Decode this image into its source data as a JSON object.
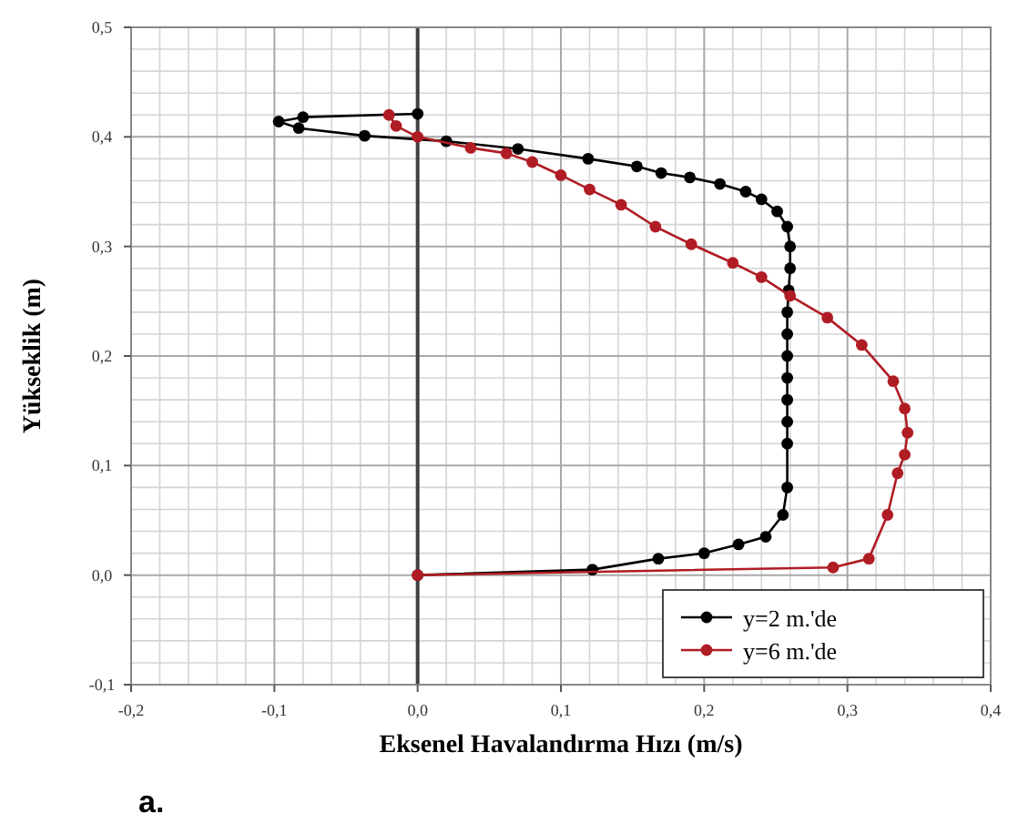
{
  "chart_data": {
    "type": "line",
    "xlabel": "Eksenel Havalandırma Hızı (m/s)",
    "ylabel": "Yükseklik (m)",
    "xlim": [
      -0.2,
      0.4
    ],
    "ylim": [
      -0.1,
      0.5
    ],
    "xticks": [
      {
        "value": -0.2,
        "label": "-0,2"
      },
      {
        "value": -0.1,
        "label": "-0,1"
      },
      {
        "value": 0,
        "label": "0,0"
      },
      {
        "value": 0.1,
        "label": "0,1"
      },
      {
        "value": 0.2,
        "label": "0,2"
      },
      {
        "value": 0.3,
        "label": "0,3"
      },
      {
        "value": 0.4,
        "label": "0,4"
      }
    ],
    "yticks": [
      {
        "value": -0.1,
        "label": "-0,1"
      },
      {
        "value": 0,
        "label": "0,0"
      },
      {
        "value": 0.1,
        "label": "0,1"
      },
      {
        "value": 0.2,
        "label": "0,2"
      },
      {
        "value": 0.3,
        "label": "0,3"
      },
      {
        "value": 0.4,
        "label": "0,4"
      },
      {
        "value": 0.5,
        "label": "0,5"
      }
    ],
    "grid": true,
    "legend": "bottom right",
    "marker": "circle",
    "line_style": "solid",
    "ref_lines": [
      {
        "axis": "x",
        "value": 0,
        "color": "#404040"
      }
    ],
    "annotations": [
      "a."
    ],
    "series": [
      {
        "name": "y=2 m.'de",
        "color": "#000000",
        "x": [
          0,
          -0.08,
          -0.097,
          -0.083,
          -0.037,
          0.02,
          0.07,
          0.119,
          0.153,
          0.17,
          0.19,
          0.211,
          0.229,
          0.24,
          0.251,
          0.258,
          0.26,
          0.26,
          0.259,
          0.258,
          0.258,
          0.258,
          0.258,
          0.258,
          0.258,
          0.258,
          0.258,
          0.255,
          0.243,
          0.224,
          0.2,
          0.168,
          0.122,
          0
        ],
        "values": [
          0.421,
          0.418,
          0.414,
          0.408,
          0.401,
          0.396,
          0.389,
          0.38,
          0.373,
          0.367,
          0.363,
          0.357,
          0.35,
          0.343,
          0.332,
          0.318,
          0.3,
          0.28,
          0.26,
          0.24,
          0.22,
          0.2,
          0.18,
          0.16,
          0.14,
          0.12,
          0.08,
          0.055,
          0.035,
          0.028,
          0.02,
          0.015,
          0.005,
          0
        ]
      },
      {
        "name": "y=6 m.'de",
        "color": "#b01c24",
        "x": [
          -0.02,
          -0.015,
          0,
          0.037,
          0.062,
          0.08,
          0.1,
          0.12,
          0.142,
          0.166,
          0.191,
          0.22,
          0.24,
          0.26,
          0.286,
          0.31,
          0.332,
          0.34,
          0.342,
          0.34,
          0.335,
          0.328,
          0.315,
          0.29,
          0
        ],
        "values": [
          0.42,
          0.41,
          0.4,
          0.39,
          0.385,
          0.377,
          0.365,
          0.352,
          0.338,
          0.318,
          0.302,
          0.285,
          0.272,
          0.255,
          0.235,
          0.21,
          0.177,
          0.152,
          0.13,
          0.11,
          0.093,
          0.055,
          0.015,
          0.007,
          0
        ]
      }
    ]
  }
}
